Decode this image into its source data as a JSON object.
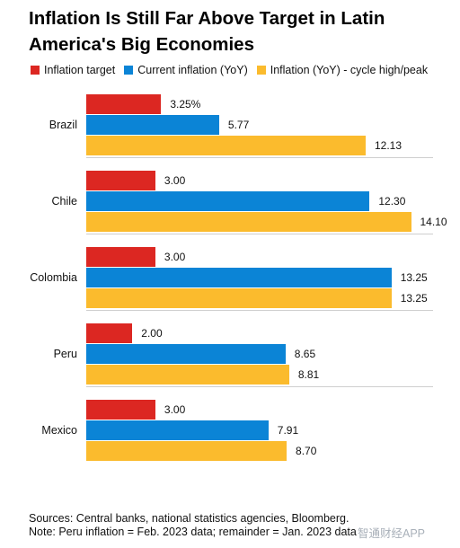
{
  "chart_data": {
    "type": "bar",
    "orientation": "horizontal",
    "title": "Inflation Is Still Far Above Target in Latin America's Big Economies",
    "categories": [
      "Brazil",
      "Chile",
      "Colombia",
      "Peru",
      "Mexico"
    ],
    "series": [
      {
        "name": "Inflation target",
        "color": "#dc2722",
        "values": [
          3.25,
          3.0,
          3.0,
          2.0,
          3.0
        ],
        "labels": [
          "3.25%",
          "3.00",
          "3.00",
          "2.00",
          "3.00"
        ]
      },
      {
        "name": "Current inflation (YoY)",
        "color": "#0b84d6",
        "values": [
          5.77,
          12.3,
          13.25,
          8.65,
          7.91
        ],
        "labels": [
          "5.77",
          "12.30",
          "13.25",
          "8.65",
          "7.91"
        ]
      },
      {
        "name": "Inflation (YoY) - cycle high/peak",
        "color": "#fbbb2d",
        "values": [
          12.13,
          14.1,
          13.25,
          8.81,
          8.7
        ],
        "labels": [
          "12.13",
          "14.10",
          "13.25",
          "8.81",
          "8.70"
        ]
      }
    ],
    "xlim": [
      0,
      16
    ],
    "grid": false,
    "legend_position": "top"
  },
  "footer": {
    "sources": "Sources: Central banks, national statistics agencies, Bloomberg.",
    "note": "Note: Peru inflation = Feb. 2023 data; remainder = Jan. 2023 data"
  },
  "watermark": "智通财经APP"
}
